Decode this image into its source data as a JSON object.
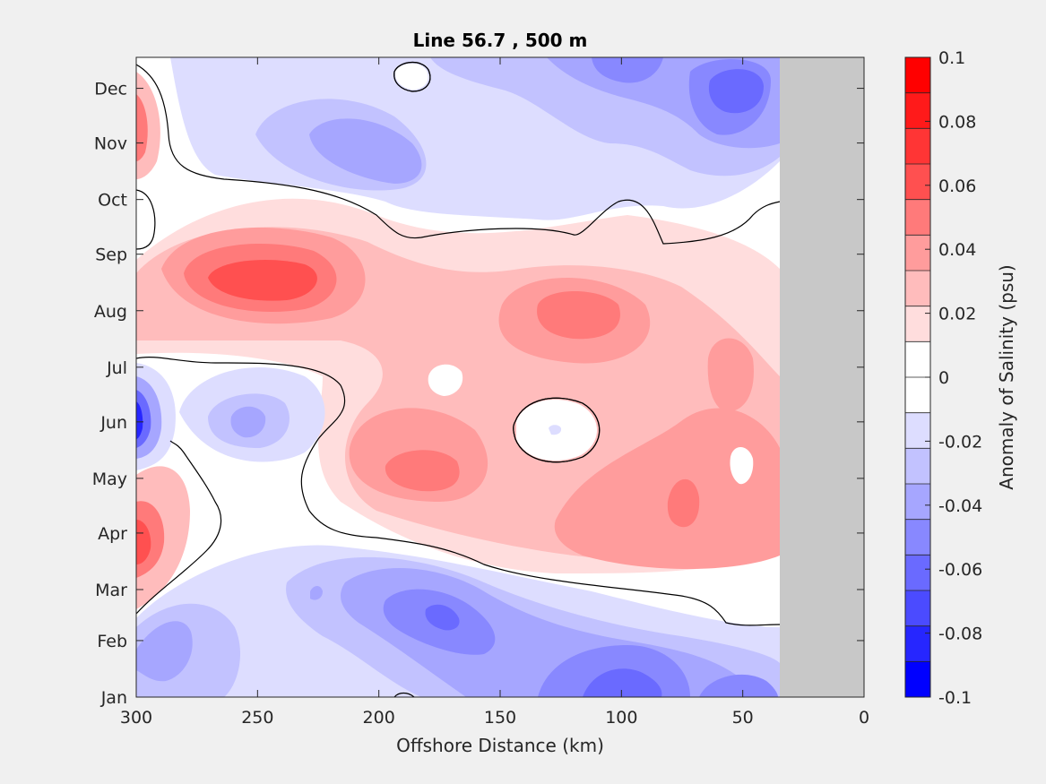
{
  "chart_data": {
    "type": "heatmap",
    "subtype": "filled-contour",
    "title": "Line 56.7 , 500 m",
    "xlabel": "Offshore Distance (km)",
    "xlim": [
      300,
      0
    ],
    "xticks": [
      300,
      250,
      200,
      150,
      100,
      50,
      0
    ],
    "yticks": [
      "Jan",
      "Feb",
      "Mar",
      "Apr",
      "May",
      "Jun",
      "Jul",
      "Aug",
      "Sep",
      "Oct",
      "Nov",
      "Dec"
    ],
    "no_data_region_km": [
      35,
      0
    ],
    "no_data_color": "#c8c8c8",
    "zero_contour_color": "#000000",
    "colorbar": {
      "label": "Anomaly of Salinity (psu)",
      "ticks": [
        "0.1",
        "0.08",
        "0.06",
        "0.04",
        "0.02",
        "0",
        "-0.02",
        "-0.04",
        "-0.06",
        "-0.08",
        "-0.1"
      ],
      "range": [
        -0.1,
        0.1
      ],
      "levels_top_to_bottom": [
        "#ff0000",
        "#ff1a1a",
        "#ff3535",
        "#ff5050",
        "#ff7a7a",
        "#ff9c9c",
        "#ffbcbc",
        "#ffdddd",
        "#ffffff",
        "#ffffff",
        "#ddddff",
        "#c2c2ff",
        "#a6a6ff",
        "#8888ff",
        "#6a6aff",
        "#4b4bff",
        "#2626ff",
        "#0000ff"
      ]
    },
    "features": [
      {
        "label": "positive max near 245 km, Sep",
        "value": 0.06
      },
      {
        "label": "positive near 105 km, Aug",
        "value": 0.05
      },
      {
        "label": "positive near 175 km, May",
        "value": 0.05
      },
      {
        "label": "positive near 300 km, Apr",
        "value": 0.06
      },
      {
        "label": "positive near 300 km, Dec",
        "value": 0.05
      },
      {
        "label": "negative near 300 km, Jun",
        "value": -0.08
      },
      {
        "label": "negative near 95 km, Jan",
        "value": -0.07
      },
      {
        "label": "negative near 40 km, Dec",
        "value": -0.07
      },
      {
        "label": "negative near 170 km, Feb",
        "value": -0.06
      }
    ]
  }
}
